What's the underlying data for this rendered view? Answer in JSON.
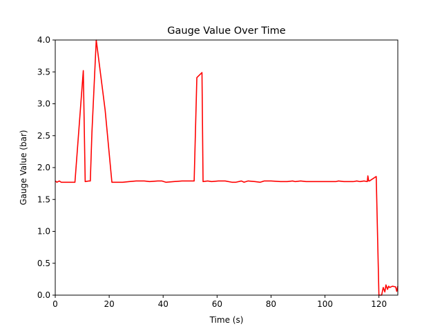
{
  "chart_data": {
    "type": "line",
    "title": "Gauge Value Over Time",
    "xlabel": "Time (s)",
    "ylabel": "Gauge Value (bar)",
    "xlim": [
      0,
      127
    ],
    "ylim": [
      0,
      4.0
    ],
    "xticks": [
      0,
      20,
      40,
      60,
      80,
      100,
      120
    ],
    "xtick_labels": [
      "0",
      "20",
      "40",
      "60",
      "80",
      "100",
      "120"
    ],
    "yticks": [
      0.0,
      0.5,
      1.0,
      1.5,
      2.0,
      2.5,
      3.0,
      3.5,
      4.0
    ],
    "ytick_labels": [
      "0.0",
      "0.5",
      "1.0",
      "1.5",
      "2.0",
      "2.5",
      "3.0",
      "3.5",
      "4.0"
    ],
    "grid": false,
    "series": [
      {
        "color": "#ff0000",
        "x": [
          0,
          0.6,
          1.5,
          2.2,
          3.5,
          5.2,
          7.3,
          10.4,
          11.1,
          12.5,
          13.0,
          13.6,
          15.2,
          18.5,
          21.0,
          25.0,
          27.5,
          30.0,
          33.0,
          35.0,
          38.0,
          39.5,
          41.0,
          44.0,
          47.0,
          51.5,
          52.5,
          54.4,
          54.8,
          56.5,
          58.0,
          60.5,
          63.0,
          65.5,
          67.0,
          69.0,
          70.0,
          71.5,
          74.0,
          76.0,
          77.5,
          80.0,
          83.5,
          86.0,
          88.0,
          89.0,
          91.0,
          93.0,
          95.0,
          100.0,
          104.0,
          105.0,
          107.0,
          110.5,
          111.8,
          113.0,
          114.5,
          115.7,
          115.9,
          116.2,
          116.5,
          119.0,
          120.0,
          121.0,
          121.6,
          122.2,
          122.6,
          123.2,
          123.6,
          124.0,
          125.0,
          126.2,
          126.6,
          127.0
        ],
        "values": [
          1.79,
          1.77,
          1.79,
          1.77,
          1.77,
          1.77,
          1.77,
          3.52,
          1.78,
          1.79,
          1.79,
          2.55,
          4.0,
          2.9,
          1.77,
          1.77,
          1.78,
          1.79,
          1.79,
          1.78,
          1.79,
          1.79,
          1.77,
          1.78,
          1.79,
          1.79,
          3.41,
          3.49,
          1.78,
          1.79,
          1.78,
          1.79,
          1.79,
          1.77,
          1.77,
          1.79,
          1.77,
          1.79,
          1.78,
          1.77,
          1.79,
          1.79,
          1.78,
          1.78,
          1.79,
          1.78,
          1.79,
          1.78,
          1.78,
          1.78,
          1.78,
          1.79,
          1.78,
          1.78,
          1.79,
          1.78,
          1.79,
          1.78,
          1.87,
          1.79,
          1.79,
          1.86,
          0.0,
          0.0,
          0.12,
          0.05,
          0.16,
          0.09,
          0.14,
          0.12,
          0.14,
          0.13,
          0.06,
          0.14
        ]
      }
    ]
  }
}
